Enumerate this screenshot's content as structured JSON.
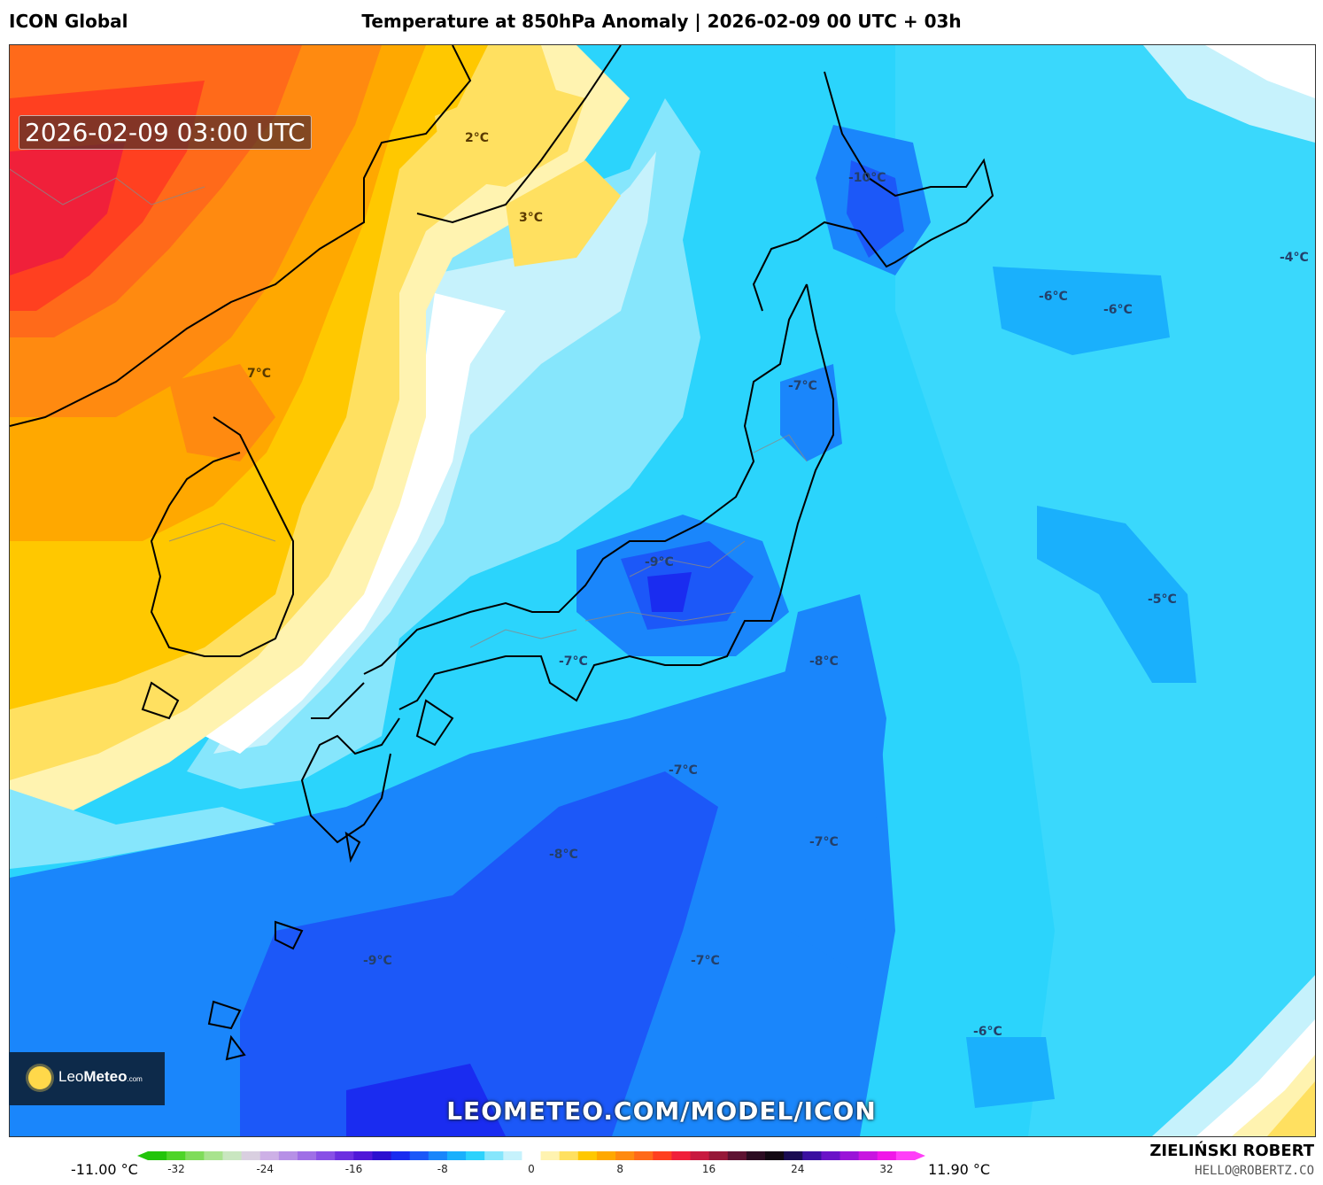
{
  "header": {
    "model": "ICON Global",
    "title": "Temperature at 850hPa Anomaly | 2026-02-09 00 UTC + 03h"
  },
  "map": {
    "valid_time": "2026-02-09 03:00 UTC",
    "watermark": "LEOMETEO.COM/MODEL/ICON",
    "logo_text_main": "Leo",
    "logo_text_bold": "Meteo",
    "logo_text_suffix": ".com",
    "labels": [
      "2°C",
      "3°C",
      "-10°C",
      "-4°C",
      "-6°C",
      "-6°C",
      "7°C",
      "-7°C",
      "-9°C",
      "-5°C",
      "-7°C",
      "-8°C",
      "-7°C",
      "-7°C",
      "-8°C",
      "-9°C",
      "-7°C",
      "-6°C"
    ]
  },
  "colorbar": {
    "min_label": "-11.00 °C",
    "max_label": "11.90 °C",
    "ticks": [
      "-32",
      "-24",
      "-16",
      "-8",
      "0",
      "8",
      "16",
      "24",
      "32"
    ],
    "colors": [
      "#22c40a",
      "#4ed428",
      "#7fdc5a",
      "#a8e38e",
      "#c9e6c0",
      "#d9cfe0",
      "#cdb0e6",
      "#b690e6",
      "#9f6fe6",
      "#8850e6",
      "#6c30e0",
      "#5018d8",
      "#2c10d0",
      "#1a2cf0",
      "#1c58f8",
      "#1a86fb",
      "#1ab0fc",
      "#2cd2fc",
      "#86e6fc",
      "#c6f2fc",
      "#ffffff",
      "#fff3b0",
      "#ffe060",
      "#ffc800",
      "#ffa800",
      "#ff8a10",
      "#ff6a1a",
      "#ff4020",
      "#f0203a",
      "#c81a40",
      "#961838",
      "#5e1232",
      "#2c0c22",
      "#120812",
      "#1a0c52",
      "#3a10a0",
      "#6a12c8",
      "#9a14d8",
      "#c816e0",
      "#f018e8",
      "#ff40f8"
    ]
  },
  "credit": {
    "author": "ZIELIŃSKI ROBERT",
    "email": "HELLO@ROBERTZ.CO"
  }
}
